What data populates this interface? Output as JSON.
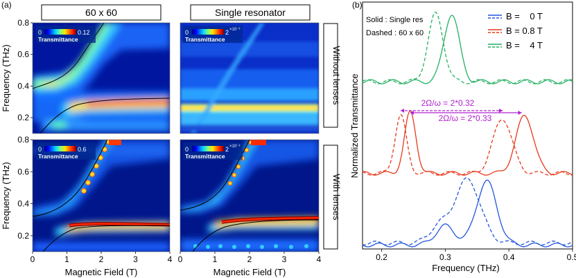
{
  "panel_labels": {
    "a": "(a)",
    "b": "(b)"
  },
  "column_titles": [
    "60 x 60",
    "Single resonator"
  ],
  "row_titles": [
    "Without lenses",
    "With lenses"
  ],
  "colorbars": [
    {
      "label": "Transmittance",
      "min": "0",
      "max": "0.12"
    },
    {
      "label": "Transmittance",
      "min": "0",
      "max": "2",
      "exp": "×10⁻³"
    },
    {
      "label": "Transmittance",
      "min": "0",
      "max": "0.6"
    },
    {
      "label": "Transmittance",
      "min": "0",
      "max": "2",
      "exp": "×10⁻³"
    }
  ],
  "colors": {
    "blue": "#2255dd",
    "red": "#e8381a",
    "green": "#22b060",
    "purple": "#b020d0"
  },
  "chart_data": [
    {
      "type": "heatmap",
      "panel": "60 x 60 / Without lenses",
      "xlabel": "",
      "ylabel": "Frequency (THz)",
      "xlim": [
        0,
        4
      ],
      "ylim": [
        0.1,
        0.8
      ],
      "yticks": [
        "0.2",
        "0.4",
        "0.6",
        "0.8"
      ],
      "colorbar": [
        0,
        0.12
      ],
      "branches": [
        {
          "x": [
            0,
            0.5,
            1.0,
            1.5,
            2.0
          ],
          "y": [
            0.4,
            0.44,
            0.54,
            0.67,
            0.8
          ]
        },
        {
          "x": [
            0.3,
            0.6,
            1.0,
            1.5,
            2.0,
            3.0,
            4.0
          ],
          "y": [
            0.1,
            0.16,
            0.24,
            0.29,
            0.31,
            0.32,
            0.325
          ]
        }
      ]
    },
    {
      "type": "heatmap",
      "panel": "Single resonator / Without lenses",
      "xlabel": "",
      "ylabel": "",
      "xlim": [
        0,
        4
      ],
      "ylim": [
        0.1,
        0.8
      ],
      "colorbar": [
        0,
        0.002
      ]
    },
    {
      "type": "heatmap",
      "panel": "60 x 60 / With lenses",
      "xlabel": "Magnetic Field (T)",
      "ylabel": "Frequency (THz)",
      "xlim": [
        0,
        4
      ],
      "ylim": [
        0.1,
        0.8
      ],
      "xticks": [
        "0",
        "1",
        "2",
        "3",
        "4"
      ],
      "yticks": [
        "0.2",
        "0.4",
        "0.6",
        "0.8"
      ],
      "colorbar": [
        0,
        0.6
      ],
      "branches": [
        {
          "x": [
            0,
            0.5,
            1.0,
            1.5,
            2.0
          ],
          "y": [
            0.32,
            0.36,
            0.46,
            0.62,
            0.8
          ]
        },
        {
          "x": [
            0.3,
            0.6,
            1.0,
            1.5,
            2.0,
            3.0,
            4.0
          ],
          "y": [
            0.1,
            0.16,
            0.22,
            0.255,
            0.265,
            0.27,
            0.27
          ]
        }
      ]
    },
    {
      "type": "heatmap",
      "panel": "Single resonator / With lenses",
      "xlabel": "Magnetic Field (T)",
      "ylabel": "",
      "xlim": [
        0,
        4
      ],
      "ylim": [
        0.1,
        0.8
      ],
      "xticks": [
        "0",
        "1",
        "2",
        "3",
        "4"
      ],
      "colorbar": [
        0,
        0.002
      ],
      "branches": [
        {
          "x": [
            0,
            0.5,
            1.0,
            1.5,
            2.0
          ],
          "y": [
            0.33,
            0.37,
            0.47,
            0.63,
            0.8
          ]
        },
        {
          "x": [
            0.3,
            0.6,
            1.0,
            1.5,
            2.0,
            3.0,
            4.0
          ],
          "y": [
            0.1,
            0.16,
            0.23,
            0.27,
            0.285,
            0.295,
            0.3
          ]
        }
      ]
    },
    {
      "type": "line",
      "xlabel": "Frequency (THz)",
      "ylabel": "Normalized Transmittance",
      "xlim": [
        0.17,
        0.5
      ],
      "xticks": [
        "0.2",
        "0.3",
        "0.4",
        "0.5"
      ],
      "annotations": [
        "Solid : Single res",
        "Dashed : 60 x 60"
      ],
      "legend": {
        "position": "top-right",
        "entries": [
          "B =    0 T",
          "B = 0.8 T",
          "B =    4 T"
        ]
      },
      "arrows": [
        {
          "label": "2Ω/ω = 2*0.32",
          "from": 0.23,
          "to": 0.39
        },
        {
          "label": "2Ω/ω = 2*0.33",
          "from": 0.245,
          "to": 0.42
        }
      ],
      "series": [
        {
          "name": "B =    4 T",
          "style": "solid",
          "offset": 2,
          "peaks": [
            [
              0.31,
              1.0,
              0.012
            ]
          ],
          "base": 0.1
        },
        {
          "name": "B =    4 T",
          "style": "dashed",
          "offset": 2,
          "peaks": [
            [
              0.285,
              1.0,
              0.012
            ]
          ],
          "base": 0.1
        },
        {
          "name": "B = 0.8 T",
          "style": "solid",
          "offset": 1,
          "peaks": [
            [
              0.245,
              1.0,
              0.009
            ],
            [
              0.425,
              0.95,
              0.014
            ]
          ],
          "base": 0.05
        },
        {
          "name": "B = 0.8 T",
          "style": "dashed",
          "offset": 1,
          "peaks": [
            [
              0.23,
              0.95,
              0.009
            ],
            [
              0.39,
              0.9,
              0.015
            ]
          ],
          "base": 0.05
        },
        {
          "name": "B =    0 T",
          "style": "solid",
          "offset": 0,
          "peaks": [
            [
              0.365,
              1.0,
              0.016
            ],
            [
              0.3,
              0.3,
              0.015
            ]
          ],
          "base": 0.02
        },
        {
          "name": "B =    0 T",
          "style": "dashed",
          "offset": 0,
          "peaks": [
            [
              0.335,
              1.0,
              0.02
            ],
            [
              0.29,
              0.25,
              0.015
            ]
          ],
          "base": 0.05
        }
      ]
    }
  ]
}
